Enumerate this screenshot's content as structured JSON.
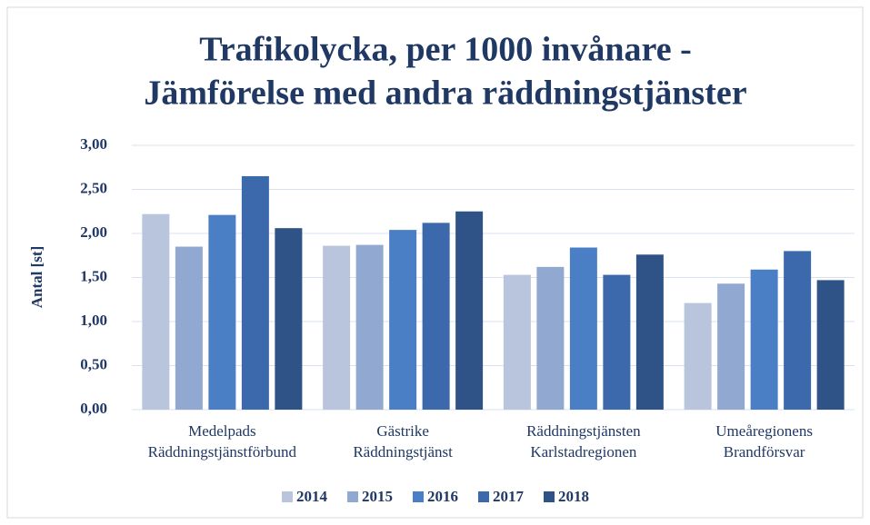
{
  "chart_data": {
    "type": "bar",
    "title": [
      "Trafikolycka, per 1000 invånare -",
      "Jämförelse med andra räddningstjänster"
    ],
    "y_label": "Antal [st]",
    "categories": [
      [
        "Medelpads",
        "Räddningstjänstförbund"
      ],
      [
        "Gästrike",
        "Räddningstjänst"
      ],
      [
        "Räddningstjänsten",
        "Karlstadregionen"
      ],
      [
        "Umeåregionens",
        "Brandförsvar"
      ]
    ],
    "series": [
      {
        "name": "2014",
        "color": "#b9c5dd",
        "values": [
          2.22,
          1.86,
          1.53,
          1.21
        ]
      },
      {
        "name": "2015",
        "color": "#91a8d0",
        "values": [
          1.85,
          1.87,
          1.62,
          1.43
        ]
      },
      {
        "name": "2016",
        "color": "#4b7fc5",
        "values": [
          2.21,
          2.04,
          1.84,
          1.59
        ]
      },
      {
        "name": "2017",
        "color": "#3b69ab",
        "values": [
          2.65,
          2.12,
          1.53,
          1.8
        ]
      },
      {
        "name": "2018",
        "color": "#2f5386",
        "values": [
          2.06,
          2.25,
          1.76,
          1.47
        ]
      }
    ],
    "ylim": [
      0,
      3
    ],
    "yticks": [
      {
        "value": 0,
        "label": "0,00"
      },
      {
        "value": 0.5,
        "label": "0,50"
      },
      {
        "value": 1,
        "label": "1,00"
      },
      {
        "value": 1.5,
        "label": "1,50"
      },
      {
        "value": 2,
        "label": "2,00"
      },
      {
        "value": 2.5,
        "label": "2,50"
      },
      {
        "value": 3,
        "label": "3,00"
      }
    ],
    "grid": true,
    "legend": "bottom"
  }
}
